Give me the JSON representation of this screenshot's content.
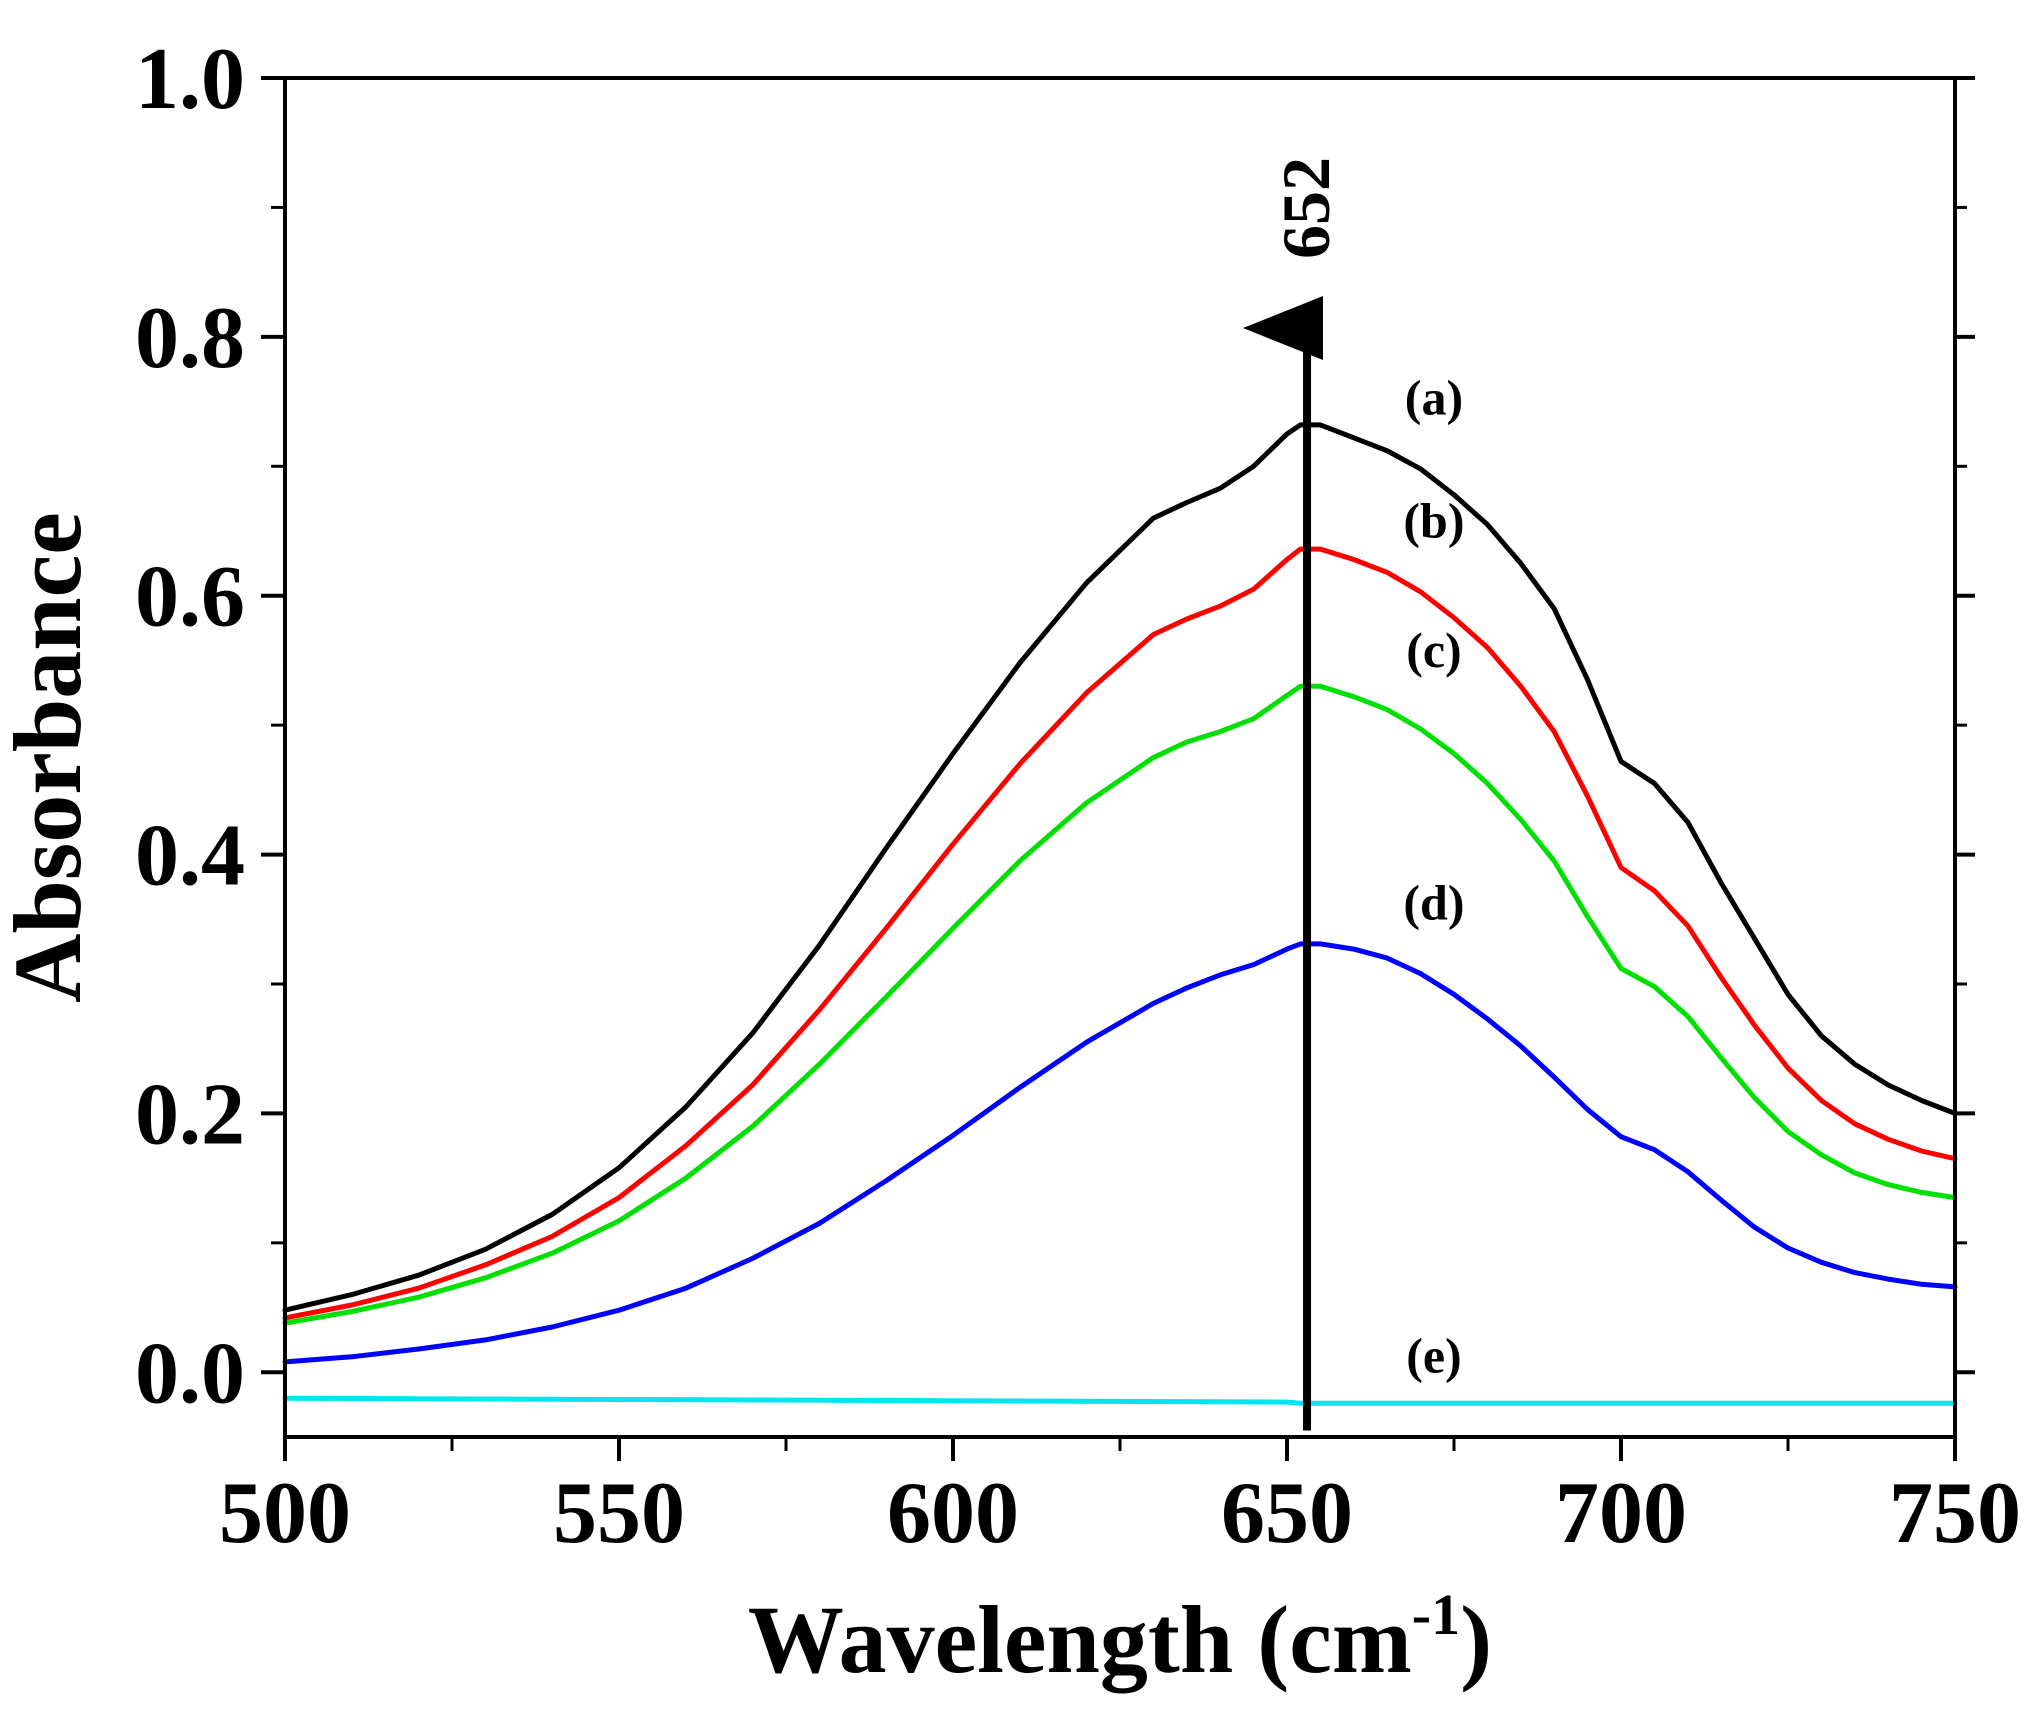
{
  "chart_data": {
    "type": "line",
    "title": "",
    "xlabel": "Wavelength (cm",
    "xlabel_sup": "-1",
    "xlabel_close": ")",
    "ylabel": "Absorbance",
    "xlim": [
      500,
      750
    ],
    "ylim": [
      -0.05,
      1.0
    ],
    "x_ticks": [
      500,
      550,
      600,
      650,
      700,
      750
    ],
    "x_tick_labels": [
      "500",
      "550",
      "600",
      "650",
      "700",
      "750"
    ],
    "y_ticks": [
      0.0,
      0.2,
      0.4,
      0.6,
      0.8,
      1.0
    ],
    "y_tick_labels": [
      "0.0",
      "0.2",
      "0.4",
      "0.6",
      "0.8",
      "1.0"
    ],
    "grid": false,
    "series": [
      {
        "name": "(a)",
        "color": "#000000",
        "points": [
          [
            500,
            0.048
          ],
          [
            510,
            0.06
          ],
          [
            520,
            0.075
          ],
          [
            530,
            0.095
          ],
          [
            540,
            0.122
          ],
          [
            550,
            0.158
          ],
          [
            560,
            0.205
          ],
          [
            570,
            0.262
          ],
          [
            580,
            0.33
          ],
          [
            590,
            0.405
          ],
          [
            600,
            0.478
          ],
          [
            610,
            0.548
          ],
          [
            620,
            0.61
          ],
          [
            630,
            0.66
          ],
          [
            635,
            0.672
          ],
          [
            640,
            0.683
          ],
          [
            645,
            0.7
          ],
          [
            650,
            0.725
          ],
          [
            652,
            0.732
          ],
          [
            655,
            0.732
          ],
          [
            660,
            0.722
          ],
          [
            665,
            0.712
          ],
          [
            670,
            0.698
          ],
          [
            675,
            0.678
          ],
          [
            680,
            0.655
          ],
          [
            685,
            0.625
          ],
          [
            690,
            0.59
          ],
          [
            695,
            0.535
          ],
          [
            700,
            0.472
          ],
          [
            705,
            0.455
          ],
          [
            710,
            0.425
          ],
          [
            715,
            0.378
          ],
          [
            720,
            0.335
          ],
          [
            725,
            0.292
          ],
          [
            730,
            0.26
          ],
          [
            735,
            0.238
          ],
          [
            740,
            0.222
          ],
          [
            745,
            0.21
          ],
          [
            750,
            0.2
          ]
        ],
        "label_x": 672,
        "label_y": 0.74
      },
      {
        "name": "(b)",
        "color": "#ff0000",
        "points": [
          [
            500,
            0.042
          ],
          [
            510,
            0.052
          ],
          [
            520,
            0.065
          ],
          [
            530,
            0.083
          ],
          [
            540,
            0.105
          ],
          [
            550,
            0.135
          ],
          [
            560,
            0.175
          ],
          [
            570,
            0.222
          ],
          [
            580,
            0.28
          ],
          [
            590,
            0.343
          ],
          [
            600,
            0.408
          ],
          [
            610,
            0.47
          ],
          [
            620,
            0.525
          ],
          [
            630,
            0.57
          ],
          [
            635,
            0.582
          ],
          [
            640,
            0.592
          ],
          [
            645,
            0.605
          ],
          [
            650,
            0.628
          ],
          [
            652,
            0.636
          ],
          [
            655,
            0.636
          ],
          [
            660,
            0.628
          ],
          [
            665,
            0.618
          ],
          [
            670,
            0.603
          ],
          [
            675,
            0.583
          ],
          [
            680,
            0.56
          ],
          [
            685,
            0.53
          ],
          [
            690,
            0.495
          ],
          [
            695,
            0.445
          ],
          [
            700,
            0.39
          ],
          [
            705,
            0.372
          ],
          [
            710,
            0.345
          ],
          [
            715,
            0.305
          ],
          [
            720,
            0.268
          ],
          [
            725,
            0.235
          ],
          [
            730,
            0.21
          ],
          [
            735,
            0.192
          ],
          [
            740,
            0.18
          ],
          [
            745,
            0.171
          ],
          [
            750,
            0.165
          ]
        ],
        "label_x": 672,
        "label_y": 0.645
      },
      {
        "name": "(c)",
        "color": "#00e000",
        "points": [
          [
            500,
            0.038
          ],
          [
            510,
            0.047
          ],
          [
            520,
            0.058
          ],
          [
            530,
            0.073
          ],
          [
            540,
            0.092
          ],
          [
            550,
            0.117
          ],
          [
            560,
            0.15
          ],
          [
            570,
            0.19
          ],
          [
            580,
            0.238
          ],
          [
            590,
            0.29
          ],
          [
            600,
            0.343
          ],
          [
            610,
            0.395
          ],
          [
            620,
            0.44
          ],
          [
            630,
            0.475
          ],
          [
            635,
            0.487
          ],
          [
            640,
            0.495
          ],
          [
            645,
            0.505
          ],
          [
            650,
            0.523
          ],
          [
            652,
            0.53
          ],
          [
            655,
            0.53
          ],
          [
            660,
            0.522
          ],
          [
            665,
            0.512
          ],
          [
            670,
            0.497
          ],
          [
            675,
            0.478
          ],
          [
            680,
            0.455
          ],
          [
            685,
            0.427
          ],
          [
            690,
            0.395
          ],
          [
            695,
            0.352
          ],
          [
            700,
            0.312
          ],
          [
            705,
            0.298
          ],
          [
            710,
            0.275
          ],
          [
            715,
            0.243
          ],
          [
            720,
            0.212
          ],
          [
            725,
            0.186
          ],
          [
            730,
            0.168
          ],
          [
            735,
            0.154
          ],
          [
            740,
            0.145
          ],
          [
            745,
            0.139
          ],
          [
            750,
            0.135
          ]
        ],
        "label_x": 672,
        "label_y": 0.545
      },
      {
        "name": "(d)",
        "color": "#0000ff",
        "points": [
          [
            500,
            0.008
          ],
          [
            510,
            0.012
          ],
          [
            520,
            0.018
          ],
          [
            530,
            0.025
          ],
          [
            540,
            0.035
          ],
          [
            550,
            0.048
          ],
          [
            560,
            0.065
          ],
          [
            570,
            0.088
          ],
          [
            580,
            0.115
          ],
          [
            590,
            0.148
          ],
          [
            600,
            0.183
          ],
          [
            610,
            0.22
          ],
          [
            620,
            0.255
          ],
          [
            630,
            0.285
          ],
          [
            635,
            0.297
          ],
          [
            640,
            0.307
          ],
          [
            645,
            0.315
          ],
          [
            650,
            0.327
          ],
          [
            652,
            0.331
          ],
          [
            655,
            0.331
          ],
          [
            660,
            0.327
          ],
          [
            665,
            0.32
          ],
          [
            670,
            0.308
          ],
          [
            675,
            0.292
          ],
          [
            680,
            0.273
          ],
          [
            685,
            0.252
          ],
          [
            690,
            0.228
          ],
          [
            695,
            0.203
          ],
          [
            700,
            0.182
          ],
          [
            705,
            0.172
          ],
          [
            710,
            0.155
          ],
          [
            715,
            0.133
          ],
          [
            720,
            0.112
          ],
          [
            725,
            0.096
          ],
          [
            730,
            0.085
          ],
          [
            735,
            0.077
          ],
          [
            740,
            0.072
          ],
          [
            745,
            0.068
          ],
          [
            750,
            0.066
          ]
        ],
        "label_x": 672,
        "label_y": 0.35
      },
      {
        "name": "(e)",
        "color": "#00e5ee",
        "points": [
          [
            500,
            -0.02
          ],
          [
            550,
            -0.021
          ],
          [
            600,
            -0.022
          ],
          [
            650,
            -0.023
          ],
          [
            652,
            -0.024
          ],
          [
            700,
            -0.024
          ],
          [
            750,
            -0.024
          ]
        ],
        "label_x": 672,
        "label_y": 0.0
      }
    ],
    "annotations": [
      {
        "type": "arrow",
        "x": 653,
        "y_start": -0.045,
        "y_end": 0.83,
        "label": "652"
      }
    ]
  }
}
